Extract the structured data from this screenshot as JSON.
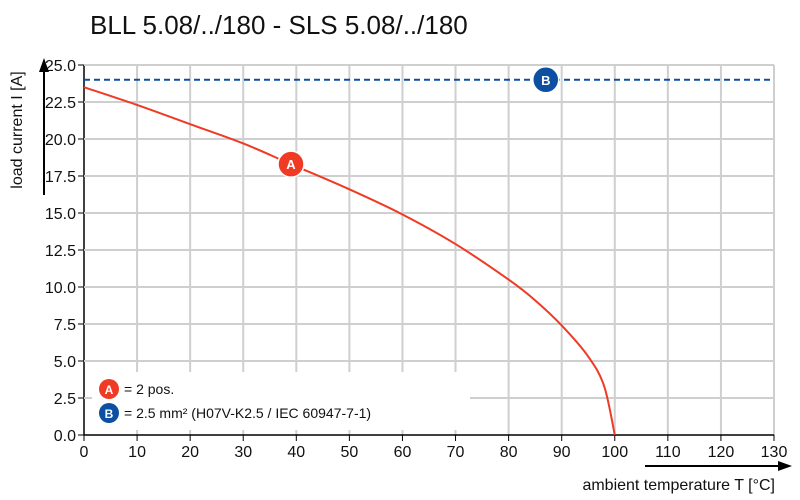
{
  "chart_data": {
    "type": "line",
    "title": "BLL 5.08/../180 - SLS 5.08/../180",
    "xlabel": "ambient temperature T [°C]",
    "ylabel": "load current I [A]",
    "xlim": [
      0,
      130
    ],
    "ylim": [
      0,
      25
    ],
    "x_ticks": [
      0,
      10,
      20,
      30,
      40,
      50,
      60,
      70,
      80,
      90,
      100,
      110,
      120,
      130
    ],
    "y_ticks": [
      0,
      2.5,
      5,
      7.5,
      10,
      12.5,
      15,
      17.5,
      20,
      22.5,
      25
    ],
    "y_tick_labels": [
      "0.0",
      "2.5",
      "5.0",
      "7.5",
      "10.0",
      "12.5",
      "15.0",
      "17.5",
      "20.0",
      "22.5",
      "25.0"
    ],
    "grid": true,
    "series": [
      {
        "name": "A",
        "color": "#f03a24",
        "style": "solid",
        "x": [
          0,
          10,
          20,
          30,
          39,
          50,
          60,
          70,
          80,
          85,
          90,
          95,
          98,
          100
        ],
        "y": [
          23.5,
          22.3,
          21.0,
          19.7,
          18.3,
          16.6,
          14.9,
          12.9,
          10.5,
          9.1,
          7.4,
          5.3,
          3.3,
          0
        ]
      },
      {
        "name": "B",
        "color": "#0d4fa0",
        "style": "dashed",
        "x": [
          0,
          130
        ],
        "y": [
          24,
          24
        ]
      }
    ],
    "markers": [
      {
        "label": "A",
        "x": 39,
        "y": 18.3,
        "color": "#f03a24"
      },
      {
        "label": "B",
        "x": 87,
        "y": 24,
        "color": "#0d4fa0"
      }
    ],
    "legend": {
      "placement": "bottom-left",
      "entries": [
        {
          "marker": "A",
          "text": "= 2 pos."
        },
        {
          "marker": "B",
          "text": "= 2.5 mm² (H07V-K2.5 / IEC 60947-7-1)"
        }
      ]
    }
  }
}
